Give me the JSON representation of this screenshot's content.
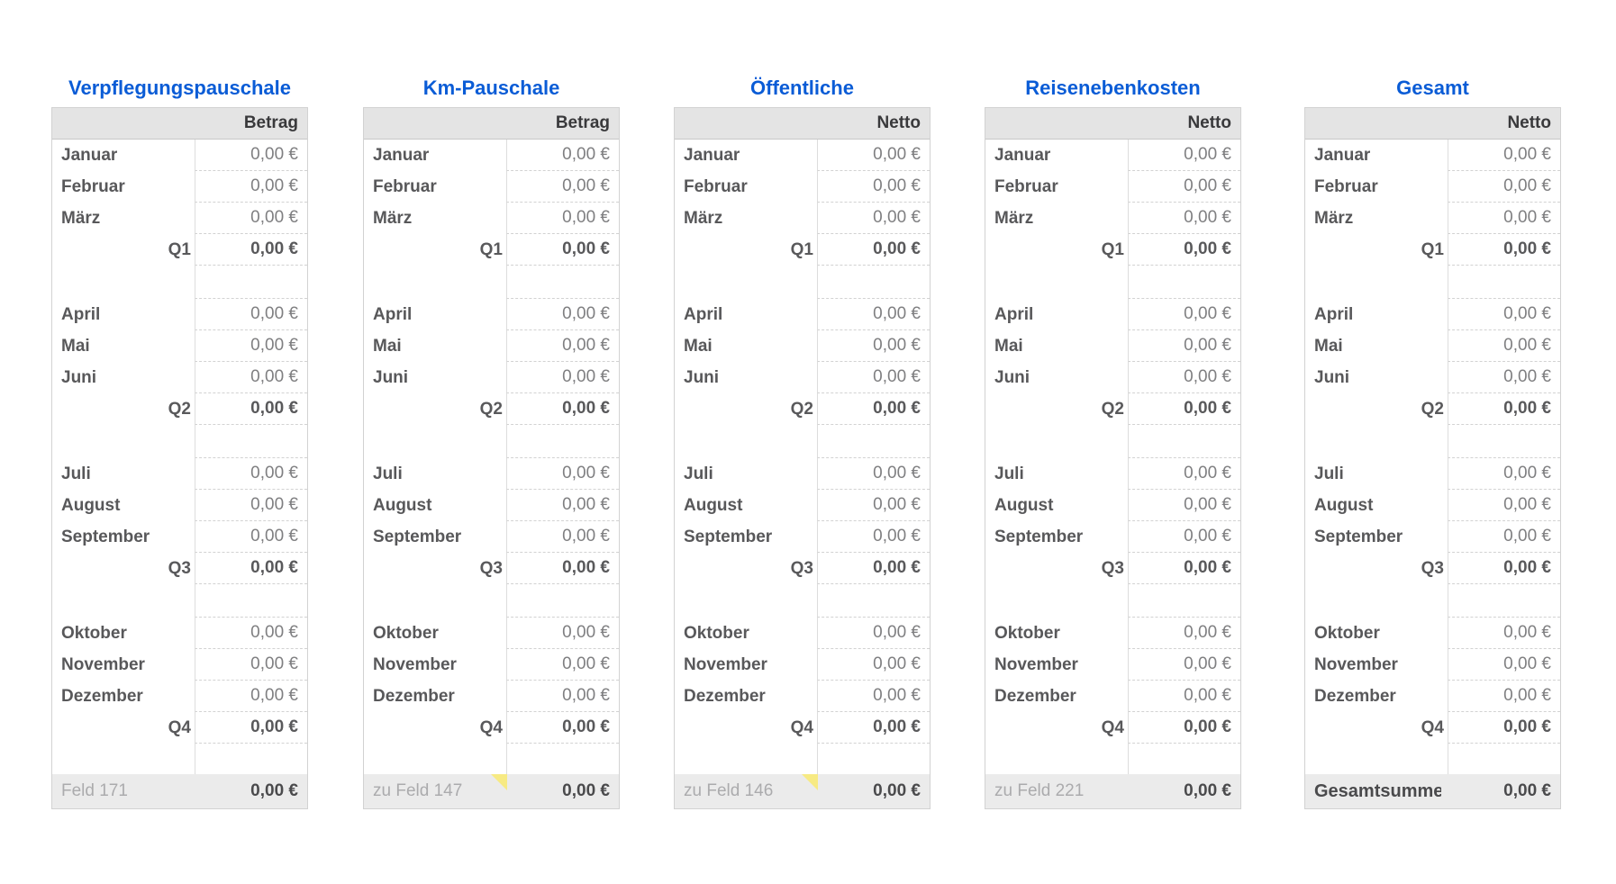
{
  "page": {
    "background": "#ffffff"
  },
  "colors": {
    "title_blue": "#0A5CD6",
    "header_bg": "#E4E4E4",
    "header_text": "#39393B",
    "month_text": "#58585A",
    "value_text": "#7F7F81",
    "quarter_text": "#59595B",
    "footer_bg": "#EBEBEB",
    "footer_label_text": "#ABABAD",
    "footer_value_text": "#4A4A4C",
    "comment_flag_yellow": "#F7EA83",
    "divider_line": "#DDDDDD",
    "dashed_line": "#D2D2D2"
  },
  "tables": [
    {
      "slug": "verpflegungspauschale",
      "title": "Verpflegungspauschale",
      "value_column_header": "Betrag",
      "rows": [
        {
          "type": "month",
          "label": "Januar",
          "value": "0,00 €"
        },
        {
          "type": "month",
          "label": "Februar",
          "value": "0,00 €"
        },
        {
          "type": "month",
          "label": "März",
          "value": "0,00 €"
        },
        {
          "type": "quarter",
          "label": "Q1",
          "value": "0,00 €"
        },
        {
          "type": "spacer"
        },
        {
          "type": "month",
          "label": "April",
          "value": "0,00 €"
        },
        {
          "type": "month",
          "label": "Mai",
          "value": "0,00 €"
        },
        {
          "type": "month",
          "label": "Juni",
          "value": "0,00 €"
        },
        {
          "type": "quarter",
          "label": "Q2",
          "value": "0,00 €"
        },
        {
          "type": "spacer"
        },
        {
          "type": "month",
          "label": "Juli",
          "value": "0,00 €"
        },
        {
          "type": "month",
          "label": "August",
          "value": "0,00 €"
        },
        {
          "type": "month",
          "label": "September",
          "value": "0,00 €"
        },
        {
          "type": "quarter",
          "label": "Q3",
          "value": "0,00 €"
        },
        {
          "type": "spacer"
        },
        {
          "type": "month",
          "label": "Oktober",
          "value": "0,00 €"
        },
        {
          "type": "month",
          "label": "November",
          "value": "0,00 €"
        },
        {
          "type": "month",
          "label": "Dezember",
          "value": "0,00 €"
        },
        {
          "type": "quarter",
          "label": "Q4",
          "value": "0,00 €"
        },
        {
          "type": "empty"
        }
      ],
      "footer": {
        "label": "Feld 171",
        "value": "0,00 €",
        "comment_flag": false,
        "emphasis": false
      }
    },
    {
      "slug": "km-pauschale",
      "title": "Km-Pauschale",
      "value_column_header": "Betrag",
      "rows": [
        {
          "type": "month",
          "label": "Januar",
          "value": "0,00 €"
        },
        {
          "type": "month",
          "label": "Februar",
          "value": "0,00 €"
        },
        {
          "type": "month",
          "label": "März",
          "value": "0,00 €"
        },
        {
          "type": "quarter",
          "label": "Q1",
          "value": "0,00 €"
        },
        {
          "type": "spacer"
        },
        {
          "type": "month",
          "label": "April",
          "value": "0,00 €"
        },
        {
          "type": "month",
          "label": "Mai",
          "value": "0,00 €"
        },
        {
          "type": "month",
          "label": "Juni",
          "value": "0,00 €"
        },
        {
          "type": "quarter",
          "label": "Q2",
          "value": "0,00 €"
        },
        {
          "type": "spacer"
        },
        {
          "type": "month",
          "label": "Juli",
          "value": "0,00 €"
        },
        {
          "type": "month",
          "label": "August",
          "value": "0,00 €"
        },
        {
          "type": "month",
          "label": "September",
          "value": "0,00 €"
        },
        {
          "type": "quarter",
          "label": "Q3",
          "value": "0,00 €"
        },
        {
          "type": "spacer"
        },
        {
          "type": "month",
          "label": "Oktober",
          "value": "0,00 €"
        },
        {
          "type": "month",
          "label": "November",
          "value": "0,00 €"
        },
        {
          "type": "month",
          "label": "Dezember",
          "value": "0,00 €"
        },
        {
          "type": "quarter",
          "label": "Q4",
          "value": "0,00 €"
        },
        {
          "type": "empty"
        }
      ],
      "footer": {
        "label": "zu Feld 147",
        "value": "0,00 €",
        "comment_flag": true,
        "emphasis": false
      }
    },
    {
      "slug": "oeffentliche",
      "title": "Öffentliche",
      "value_column_header": "Netto",
      "rows": [
        {
          "type": "month",
          "label": "Januar",
          "value": "0,00 €"
        },
        {
          "type": "month",
          "label": "Februar",
          "value": "0,00 €"
        },
        {
          "type": "month",
          "label": "März",
          "value": "0,00 €"
        },
        {
          "type": "quarter",
          "label": "Q1",
          "value": "0,00 €"
        },
        {
          "type": "spacer"
        },
        {
          "type": "month",
          "label": "April",
          "value": "0,00 €"
        },
        {
          "type": "month",
          "label": "Mai",
          "value": "0,00 €"
        },
        {
          "type": "month",
          "label": "Juni",
          "value": "0,00 €"
        },
        {
          "type": "quarter",
          "label": "Q2",
          "value": "0,00 €"
        },
        {
          "type": "spacer"
        },
        {
          "type": "month",
          "label": "Juli",
          "value": "0,00 €"
        },
        {
          "type": "month",
          "label": "August",
          "value": "0,00 €"
        },
        {
          "type": "month",
          "label": "September",
          "value": "0,00 €"
        },
        {
          "type": "quarter",
          "label": "Q3",
          "value": "0,00 €"
        },
        {
          "type": "spacer"
        },
        {
          "type": "month",
          "label": "Oktober",
          "value": "0,00 €"
        },
        {
          "type": "month",
          "label": "November",
          "value": "0,00 €"
        },
        {
          "type": "month",
          "label": "Dezember",
          "value": "0,00 €"
        },
        {
          "type": "quarter",
          "label": "Q4",
          "value": "0,00 €"
        },
        {
          "type": "empty"
        }
      ],
      "footer": {
        "label": "zu Feld 146",
        "value": "0,00 €",
        "comment_flag": true,
        "emphasis": false
      }
    },
    {
      "slug": "reisenebenkosten",
      "title": "Reisenebenkosten",
      "value_column_header": "Netto",
      "rows": [
        {
          "type": "month",
          "label": "Januar",
          "value": "0,00 €"
        },
        {
          "type": "month",
          "label": "Februar",
          "value": "0,00 €"
        },
        {
          "type": "month",
          "label": "März",
          "value": "0,00 €"
        },
        {
          "type": "quarter",
          "label": "Q1",
          "value": "0,00 €"
        },
        {
          "type": "spacer"
        },
        {
          "type": "month",
          "label": "April",
          "value": "0,00 €"
        },
        {
          "type": "month",
          "label": "Mai",
          "value": "0,00 €"
        },
        {
          "type": "month",
          "label": "Juni",
          "value": "0,00 €"
        },
        {
          "type": "quarter",
          "label": "Q2",
          "value": "0,00 €"
        },
        {
          "type": "spacer"
        },
        {
          "type": "month",
          "label": "Juli",
          "value": "0,00 €"
        },
        {
          "type": "month",
          "label": "August",
          "value": "0,00 €"
        },
        {
          "type": "month",
          "label": "September",
          "value": "0,00 €"
        },
        {
          "type": "quarter",
          "label": "Q3",
          "value": "0,00 €"
        },
        {
          "type": "spacer"
        },
        {
          "type": "month",
          "label": "Oktober",
          "value": "0,00 €"
        },
        {
          "type": "month",
          "label": "November",
          "value": "0,00 €"
        },
        {
          "type": "month",
          "label": "Dezember",
          "value": "0,00 €"
        },
        {
          "type": "quarter",
          "label": "Q4",
          "value": "0,00 €"
        },
        {
          "type": "empty"
        }
      ],
      "footer": {
        "label": "zu Feld 221",
        "value": "0,00 €",
        "comment_flag": false,
        "emphasis": false
      }
    },
    {
      "slug": "gesamt",
      "title": "Gesamt",
      "value_column_header": "Netto",
      "rows": [
        {
          "type": "month",
          "label": "Januar",
          "value": "0,00 €"
        },
        {
          "type": "month",
          "label": "Februar",
          "value": "0,00 €"
        },
        {
          "type": "month",
          "label": "März",
          "value": "0,00 €"
        },
        {
          "type": "quarter",
          "label": "Q1",
          "value": "0,00 €"
        },
        {
          "type": "spacer"
        },
        {
          "type": "month",
          "label": "April",
          "value": "0,00 €"
        },
        {
          "type": "month",
          "label": "Mai",
          "value": "0,00 €"
        },
        {
          "type": "month",
          "label": "Juni",
          "value": "0,00 €"
        },
        {
          "type": "quarter",
          "label": "Q2",
          "value": "0,00 €"
        },
        {
          "type": "spacer"
        },
        {
          "type": "month",
          "label": "Juli",
          "value": "0,00 €"
        },
        {
          "type": "month",
          "label": "August",
          "value": "0,00 €"
        },
        {
          "type": "month",
          "label": "September",
          "value": "0,00 €"
        },
        {
          "type": "quarter",
          "label": "Q3",
          "value": "0,00 €"
        },
        {
          "type": "spacer"
        },
        {
          "type": "month",
          "label": "Oktober",
          "value": "0,00 €"
        },
        {
          "type": "month",
          "label": "November",
          "value": "0,00 €"
        },
        {
          "type": "month",
          "label": "Dezember",
          "value": "0,00 €"
        },
        {
          "type": "quarter",
          "label": "Q4",
          "value": "0,00 €"
        },
        {
          "type": "empty"
        }
      ],
      "footer": {
        "label": "Gesamtsumme",
        "value": "0,00 €",
        "comment_flag": false,
        "emphasis": true
      }
    }
  ]
}
